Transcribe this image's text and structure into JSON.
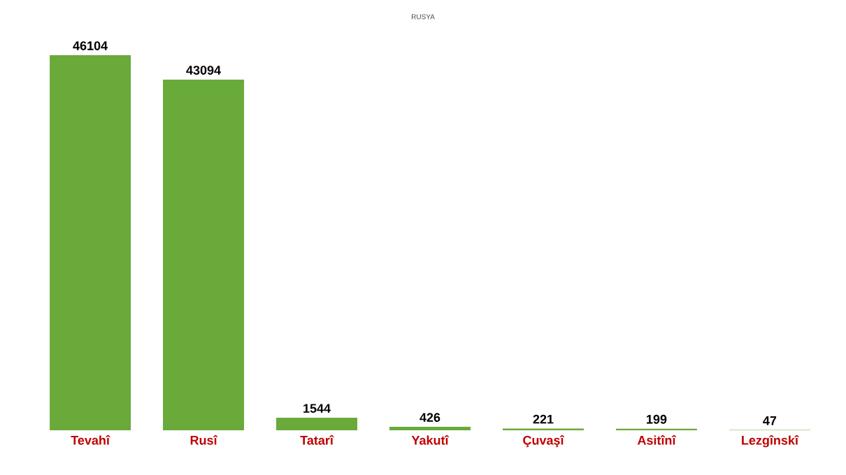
{
  "chart_data": {
    "type": "bar",
    "title": "RUSYA",
    "categories": [
      "Tevahî",
      "Rusî",
      "Tatarî",
      "Yakutî",
      "Çuvaşî",
      "Asitînî",
      "Lezgînskî"
    ],
    "values": [
      46104,
      43094,
      1544,
      426,
      221,
      199,
      47
    ],
    "color": "#6aaa3a",
    "data_labels": true
  }
}
